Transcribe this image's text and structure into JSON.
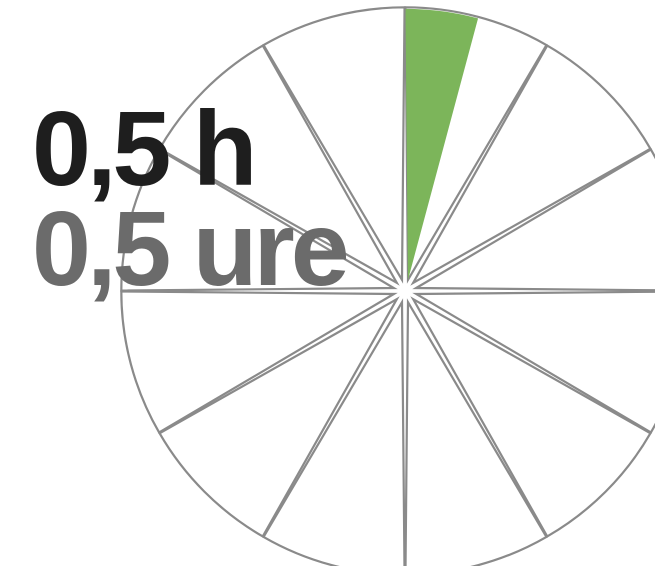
{
  "diagram": {
    "segments_total": 12,
    "highlighted_segment_fraction": 0.5,
    "highlighted_segment_index": 0
  },
  "labels": {
    "primary": "0,5 h",
    "secondary": "0,5 ure"
  },
  "colors": {
    "highlight": "#7cb55a",
    "outline": "#8a8a8a",
    "primary_text": "#1e1e1e",
    "secondary_text": "#6b6b6b",
    "background": "#ffffff"
  }
}
